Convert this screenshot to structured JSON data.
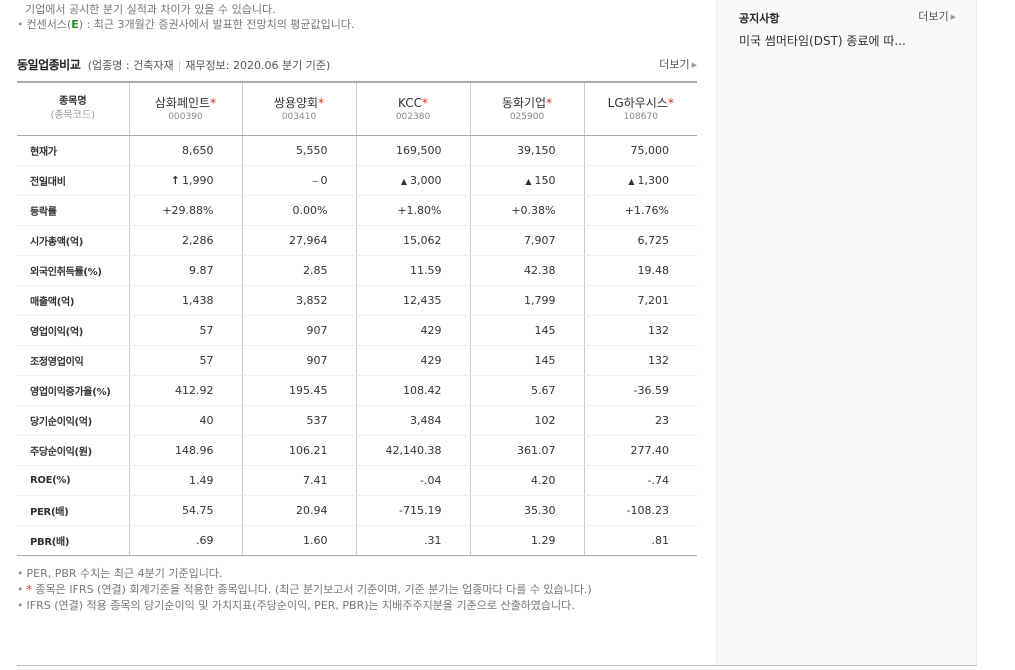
{
  "top_notes": {
    "line1": "기업에서 공시한 분기 실적과 차이가 있을 수 있습니다.",
    "line2_prefix": "컨센서스(",
    "line2_e": "E",
    "line2_suffix": ") : 최근 3개월간 증권사에서 발표한 전망치의 평균값입니다."
  },
  "section": {
    "title": "동일업종비교",
    "industry_label": "(업종명 : 건축자재",
    "sep": "|",
    "finance_label": "재무정보: 2020.06 분기 기준)",
    "more": "더보기"
  },
  "table": {
    "header_label": "종목명",
    "header_sub": "(종목코드)",
    "companies": [
      {
        "name": "삼화페인트",
        "code": "000390"
      },
      {
        "name": "쌍용양회",
        "code": "003410"
      },
      {
        "name": "KCC",
        "code": "002380"
      },
      {
        "name": "동화기업",
        "code": "025900"
      },
      {
        "name": "LG하우시스",
        "code": "108670"
      }
    ],
    "rows": {
      "price": {
        "label": "현재가",
        "values": [
          "8,650",
          "5,550",
          "169,500",
          "39,150",
          "75,000"
        ]
      },
      "change": {
        "label": "전일대비",
        "values": [
          "1,990",
          "0",
          "3,000",
          "150",
          "1,300"
        ]
      },
      "rate": {
        "label": "등락률",
        "values": [
          "+29.88%",
          "0.00%",
          "+1.80%",
          "+0.38%",
          "+1.76%"
        ]
      },
      "mcap": {
        "label": "시가총액(억)",
        "values": [
          "2,286",
          "27,964",
          "15,062",
          "7,907",
          "6,725"
        ]
      },
      "foreign": {
        "label": "외국인취득률(%)",
        "values": [
          "9.87",
          "2.85",
          "11.59",
          "42.38",
          "19.48"
        ]
      },
      "sales": {
        "label": "매출액(억)",
        "values": [
          "1,438",
          "3,852",
          "12,435",
          "1,799",
          "7,201"
        ]
      },
      "op": {
        "label": "영업이익(억)",
        "values": [
          "57",
          "907",
          "429",
          "145",
          "132"
        ]
      },
      "adj_op": {
        "label": "조정영업이익",
        "values": [
          "57",
          "907",
          "429",
          "145",
          "132"
        ]
      },
      "op_growth": {
        "label": "영업이익증가율(%)",
        "values": [
          "412.92",
          "195.45",
          "108.42",
          "5.67",
          "-36.59"
        ]
      },
      "net": {
        "label": "당기순이익(억)",
        "values": [
          "40",
          "537",
          "3,484",
          "102",
          "23"
        ]
      },
      "eps": {
        "label": "주당순이익(원)",
        "values": [
          "148.96",
          "106.21",
          "42,140.38",
          "361.07",
          "277.40"
        ]
      },
      "roe": {
        "label": "ROE(%)",
        "values": [
          "1.49",
          "7.41",
          "-.04",
          "4.20",
          "-.74"
        ]
      },
      "per": {
        "label": "PER(배)",
        "values": [
          "54.75",
          "20.94",
          "-715.19",
          "35.30",
          "-108.23"
        ]
      },
      "pbr": {
        "label": "PBR(배)",
        "values": [
          ".69",
          "1.60",
          ".31",
          "1.29",
          ".81"
        ]
      }
    }
  },
  "footnotes": {
    "line1": "PER, PBR 수치는 최근 4분기 기준입니다.",
    "line2": "종목은 IFRS (연결) 회계기준을 적용한 종목입니다. (최근 분기보고서 기준이며, 기준 분기는 업종마다 다를 수 있습니다.)",
    "line3": "IFRS (연결) 적용 종목의 당기순이익 및 가치지표(주당순이익, PER, PBR)는 지배주주지분을 기준으로 산출하였습니다."
  },
  "notice": {
    "title": "공지사항",
    "more": "더보기",
    "item": "미국 썸머타임(DST) 종료에 따..."
  },
  "colors": {
    "rise": "#d6301d",
    "consensus": "#2e8b2e"
  }
}
